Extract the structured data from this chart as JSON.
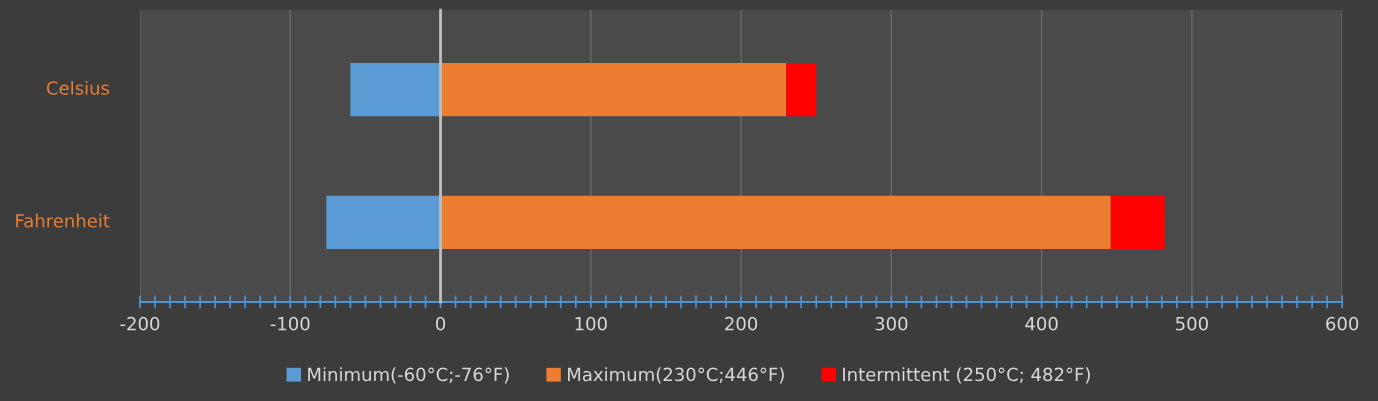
{
  "chart_data": {
    "type": "bar",
    "orientation": "horizontal",
    "stacked": true,
    "categories": [
      "Celsius",
      "Fahrenheit"
    ],
    "series": [
      {
        "name": "Minimum(-60°C;-76°F)",
        "color": "#5b9bd5",
        "values": [
          -60,
          -76
        ]
      },
      {
        "name": "Maximum(230°C;446°F)",
        "color": "#ed7d31",
        "values": [
          230,
          446
        ]
      },
      {
        "name": "Intermittent (250°C; 482°F)",
        "color": "#ff0000",
        "values": [
          20,
          36
        ]
      }
    ],
    "xlim": [
      -200,
      600
    ],
    "xticks": [
      -200,
      {
        "value": -190,
        "label": null
      },
      {
        "value": -180,
        "label": null
      },
      {
        "value": -170,
        "label": null
      },
      {
        "value": -160,
        "label": null
      },
      {
        "value": -150,
        "label": null
      },
      {
        "value": -140,
        "label": null
      },
      {
        "value": -130,
        "label": null
      },
      {
        "value": -120,
        "label": null
      },
      {
        "value": -110,
        "label": null
      },
      -100,
      {
        "value": -90,
        "label": null
      },
      {
        "value": -80,
        "label": null
      },
      {
        "value": -70,
        "label": null
      },
      {
        "value": -60,
        "label": null
      },
      {
        "value": -50,
        "label": null
      },
      {
        "value": -40,
        "label": null
      },
      {
        "value": -30,
        "label": null
      },
      {
        "value": -20,
        "label": null
      },
      {
        "value": -10,
        "label": null
      },
      0,
      {
        "value": 10,
        "label": null
      },
      {
        "value": 20,
        "label": null
      },
      {
        "value": 30,
        "label": null
      },
      {
        "value": 40,
        "label": null
      },
      {
        "value": 50,
        "label": null
      },
      {
        "value": 60,
        "label": null
      },
      {
        "value": 70,
        "label": null
      },
      {
        "value": 80,
        "label": null
      },
      {
        "value": 90,
        "label": null
      },
      100,
      {
        "value": 110,
        "label": null
      },
      {
        "value": 120,
        "label": null
      },
      {
        "value": 130,
        "label": null
      },
      {
        "value": 140,
        "label": null
      },
      {
        "value": 150,
        "label": null
      },
      {
        "value": 160,
        "label": null
      },
      {
        "value": 170,
        "label": null
      },
      {
        "value": 180,
        "label": null
      },
      {
        "value": 190,
        "label": null
      },
      200,
      {
        "value": 210,
        "label": null
      },
      {
        "value": 220,
        "label": null
      },
      {
        "value": 230,
        "label": null
      },
      {
        "value": 240,
        "label": null
      },
      {
        "value": 250,
        "label": null
      },
      {
        "value": 260,
        "label": null
      },
      {
        "value": 270,
        "label": null
      },
      {
        "value": 280,
        "label": null
      },
      {
        "value": 290,
        "label": null
      },
      300,
      {
        "value": 310,
        "label": null
      },
      {
        "value": 320,
        "label": null
      },
      {
        "value": 330,
        "label": null
      },
      {
        "value": 340,
        "label": null
      },
      {
        "value": 350,
        "label": null
      },
      {
        "value": 360,
        "label": null
      },
      {
        "value": 370,
        "label": null
      },
      {
        "value": 380,
        "label": null
      },
      {
        "value": 390,
        "label": null
      },
      400,
      {
        "value": 410,
        "label": null
      },
      {
        "value": 420,
        "label": null
      },
      {
        "value": 430,
        "label": null
      },
      {
        "value": 440,
        "label": null
      },
      {
        "value": 450,
        "label": null
      },
      {
        "value": 460,
        "label": null
      },
      {
        "value": 470,
        "label": null
      },
      {
        "value": 480,
        "label": null
      },
      {
        "value": 490,
        "label": null
      },
      500,
      {
        "value": 510,
        "label": null
      },
      {
        "value": 520,
        "label": null
      },
      {
        "value": 530,
        "label": null
      },
      {
        "value": 540,
        "label": null
      },
      {
        "value": 550,
        "label": null
      },
      {
        "value": 560,
        "label": null
      },
      {
        "value": 570,
        "label": null
      },
      {
        "value": 580,
        "label": null
      },
      {
        "value": 590,
        "label": null
      },
      600
    ],
    "grid": "x",
    "legend": "bottom"
  }
}
